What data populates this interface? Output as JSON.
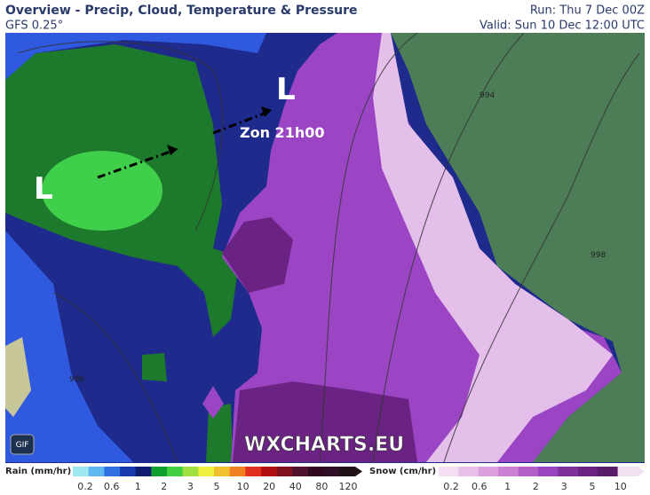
{
  "header": {
    "title": "Overview - Precip, Cloud, Temperature & Pressure",
    "model": "GFS 0.25°",
    "run": "Run: Thu 7 Dec 00Z",
    "valid": "Valid: Sun 10 Dec 12:00 UTC"
  },
  "map": {
    "lows": [
      "L",
      "L"
    ],
    "annotation": "Zon 21h00",
    "isobars": [
      "994",
      "998",
      "986"
    ],
    "watermark": "WXCHARTS.EU",
    "button": "GIF"
  },
  "legend": {
    "rain": {
      "label": "Rain (mm/hr)",
      "ticks": [
        "0.2",
        "0.6",
        "1",
        "2",
        "3",
        "5",
        "10",
        "20",
        "40",
        "80",
        "120"
      ]
    },
    "snow": {
      "label": "Snow (cm/hr)",
      "ticks": [
        "0.2",
        "0.6",
        "1",
        "2",
        "3",
        "5",
        "10"
      ]
    }
  }
}
